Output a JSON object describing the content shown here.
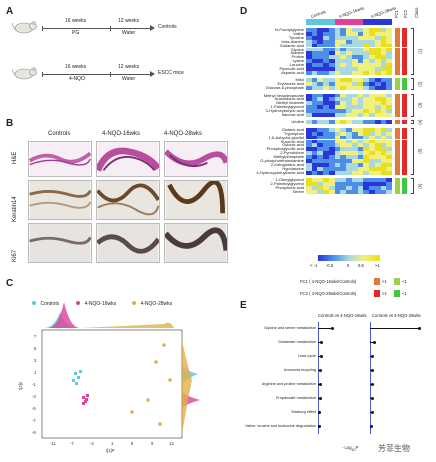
{
  "panel_a": {
    "letter": "A",
    "row1": {
      "period1": "16 weeks",
      "treat1": "PG",
      "period2": "12 weeks",
      "treat2": "Water",
      "outcome": "Controls"
    },
    "row2": {
      "period1": "16 weeks",
      "treat1": "4-NQO",
      "period2": "12 weeks",
      "treat2": "Water",
      "outcome": "ESCC mice"
    }
  },
  "panel_b": {
    "letter": "B",
    "columns": [
      "Controls",
      "4-NQO-16wks",
      "4-NQO-28wks"
    ],
    "rows": [
      "H&E",
      "Keratin14",
      "Ki67"
    ]
  },
  "panel_c": {
    "letter": "C",
    "legend": [
      {
        "label": "Controls",
        "color": "#5bc8e0"
      },
      {
        "label": "4-NQO-16wks",
        "color": "#e0409a"
      },
      {
        "label": "4-NQO-28wks",
        "color": "#e0b04a"
      }
    ],
    "xlabel": "t[1]P",
    "ylabel": "t[2]o",
    "xticks": [
      "-11",
      "-7",
      "-3",
      "1",
      "5",
      "9",
      "13"
    ],
    "yticks": [
      "7",
      "5",
      "3",
      "1",
      "-1",
      "-3",
      "-5",
      "-7",
      "-9"
    ]
  },
  "panel_d": {
    "letter": "D",
    "group_labels": [
      "Controls",
      "4-NQO-16wks",
      "4-NQO-28wks"
    ],
    "fc_headers": [
      "FC1",
      "FC2",
      "Class"
    ],
    "clusters": [
      {
        "label": "(1)",
        "metabolites": [
          "N-Formylglycine",
          "Valine",
          "Tyrosine",
          "beta-Alanine",
          "Glutamic acid",
          "Glycine",
          "Alanine",
          "Proline",
          "Lysine",
          "Leucine",
          "Pipecolic acid",
          "Aspartic acid"
        ]
      },
      {
        "label": "(2)",
        "metabolites": [
          "Mitol",
          "Erythronic acid",
          "Glucose-6-phosphate"
        ]
      },
      {
        "label": "(3)",
        "metabolites": [
          "Methyl hexadecanoate",
          "Arachidonic acid",
          "Methyl linoleate",
          "1-Palmitoylglycerol",
          "3-Hydroxybutyric acid",
          "Itaconic acid"
        ]
      },
      {
        "label": "(4)",
        "metabolites": [
          "Uridine"
        ]
      },
      {
        "label": "(5)",
        "metabolites": [
          "Glutaric acid",
          "Tryptophan",
          "1,5-Anhydro-glucitol",
          "Succinic acid",
          "Gulonic acid",
          "Phosphoglycolic acid",
          "2-Pyrrolidone",
          "Methylphosphate",
          "O-phosphoethanolamine",
          "2-Ketoglutaric acid",
          "Hypotaurine",
          "4-Hydroxyphenyllactic acid"
        ]
      },
      {
        "label": "(6)",
        "metabolites": [
          "1-Oleoylglycerol",
          "2-Palmitoylglycerol",
          "Phosphoric acid",
          "Serine"
        ]
      }
    ],
    "scale_labels": [
      "< -1",
      "-0.5",
      "0",
      "0.5",
      ">1"
    ],
    "fc_legend": [
      {
        "label": "FC1 ( 4-NQO-16wks/Controls)",
        "gt": ">1",
        "lt": "<1",
        "gt_color": "#e07a3a",
        "lt_color": "#9ad04a"
      },
      {
        "label": "FC2 ( 4-NQO-28wks/Controls)",
        "gt": ">1",
        "lt": "<1",
        "gt_color": "#e02a2a",
        "lt_color": "#3ec93e"
      }
    ]
  },
  "panel_e": {
    "letter": "E",
    "titles": [
      "Controls vs 4-NQO-16wks",
      "Controls vs 4-NQO-28wks"
    ],
    "pathways": [
      "Glycine and serine metabolism",
      "Glutamate metabolism",
      "Urea cycle",
      "Ammonia recycling",
      "Arginine and proline metabolism",
      "Propanoate metabolism",
      "Warburg effect",
      "Valine, leucine and isoleucine degradation"
    ],
    "xlabel": "- Log",
    "xlabel_sub": "10",
    "xlabel_p": "P",
    "values_16wks": [
      1.2,
      0.3,
      0.25,
      0.2,
      0.2,
      0.2,
      0.15,
      0.1
    ],
    "values_28wks": [
      3.5,
      0.3,
      0.2,
      0.2,
      0.2,
      0.15,
      0.15,
      0.1
    ]
  },
  "watermark": "芳菲生物"
}
